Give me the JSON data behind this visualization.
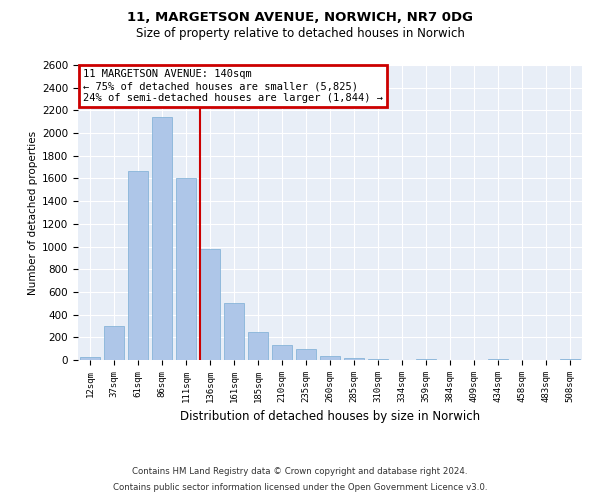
{
  "title1": "11, MARGETSON AVENUE, NORWICH, NR7 0DG",
  "title2": "Size of property relative to detached houses in Norwich",
  "xlabel": "Distribution of detached houses by size in Norwich",
  "ylabel": "Number of detached properties",
  "categories": [
    "12sqm",
    "37sqm",
    "61sqm",
    "86sqm",
    "111sqm",
    "136sqm",
    "161sqm",
    "185sqm",
    "210sqm",
    "235sqm",
    "260sqm",
    "285sqm",
    "310sqm",
    "334sqm",
    "359sqm",
    "384sqm",
    "409sqm",
    "434sqm",
    "458sqm",
    "483sqm",
    "508sqm"
  ],
  "values": [
    30,
    300,
    1670,
    2140,
    1600,
    975,
    500,
    245,
    130,
    95,
    35,
    20,
    5,
    0,
    5,
    0,
    0,
    5,
    0,
    0,
    5
  ],
  "bar_color": "#aec6e8",
  "bar_edge_color": "#7aadd4",
  "vline_index": 5,
  "vline_color": "#cc0000",
  "annotation_text": "11 MARGETSON AVENUE: 140sqm\n← 75% of detached houses are smaller (5,825)\n24% of semi-detached houses are larger (1,844) →",
  "annotation_box_color": "#cc0000",
  "ylim": [
    0,
    2600
  ],
  "yticks": [
    0,
    200,
    400,
    600,
    800,
    1000,
    1200,
    1400,
    1600,
    1800,
    2000,
    2200,
    2400,
    2600
  ],
  "footer1": "Contains HM Land Registry data © Crown copyright and database right 2024.",
  "footer2": "Contains public sector information licensed under the Open Government Licence v3.0.",
  "bg_color": "#e8eef7",
  "grid_color": "#ffffff"
}
